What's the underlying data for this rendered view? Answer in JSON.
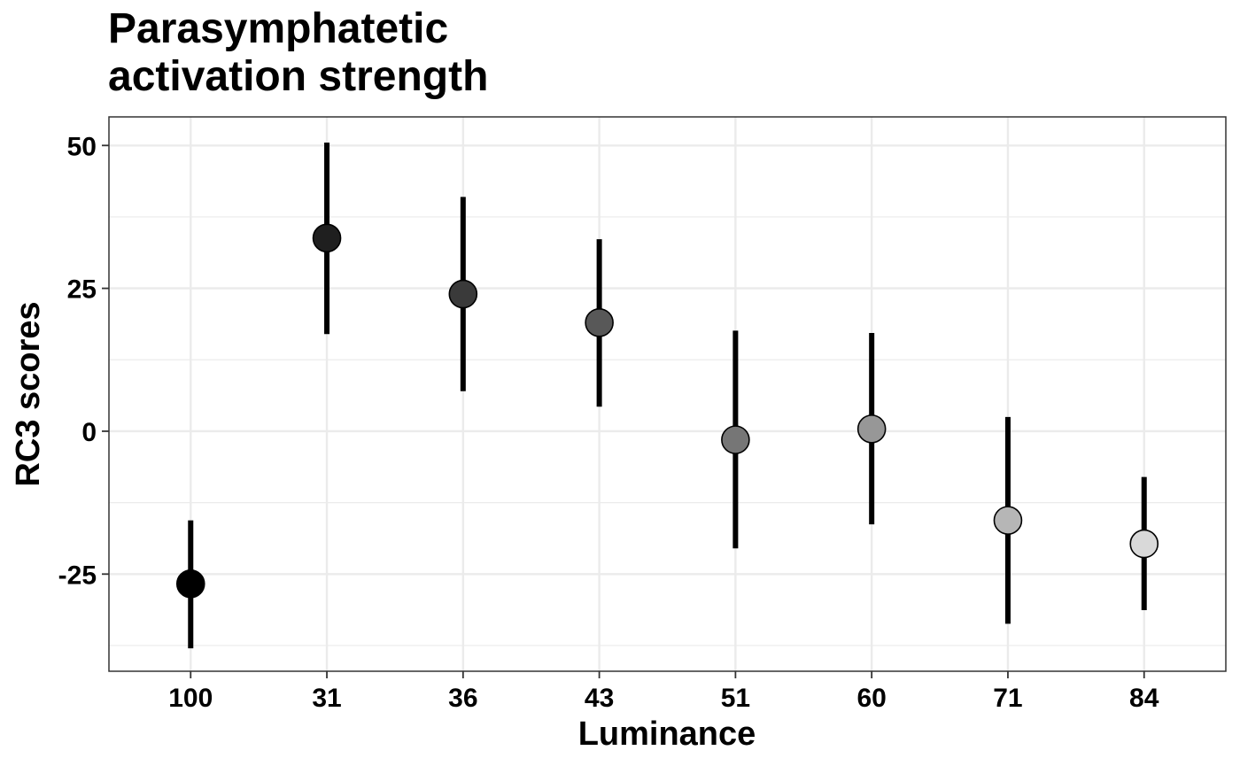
{
  "chart_data": {
    "type": "scatter",
    "title_lines": [
      "Parasymphatetic",
      "activation strength"
    ],
    "xlabel": "Luminance",
    "ylabel": "RC3 scores",
    "categories": [
      "100",
      "31",
      "36",
      "43",
      "51",
      "60",
      "71",
      "84"
    ],
    "values": [
      -26.7,
      33.8,
      24.0,
      19.0,
      -1.5,
      0.4,
      -15.6,
      -19.7
    ],
    "lower": [
      -38.0,
      17.0,
      7.0,
      4.3,
      -20.5,
      -16.3,
      -33.7,
      -31.3
    ],
    "upper": [
      -15.6,
      50.5,
      41.0,
      33.6,
      17.6,
      17.2,
      2.5,
      -8.0
    ],
    "point_colors": [
      "#000000",
      "#1f1f1f",
      "#3a3a3a",
      "#585858",
      "#767676",
      "#979797",
      "#b6b6b6",
      "#d9d9d9"
    ],
    "ylim": [
      -42,
      55
    ],
    "yticks": [
      -25,
      0,
      25,
      50
    ],
    "ytick_labels": [
      "-25",
      "0",
      "25",
      "50"
    ],
    "yminor": [
      -37.5,
      -12.5,
      12.5,
      37.5
    ],
    "grid": true,
    "legend": "none"
  }
}
